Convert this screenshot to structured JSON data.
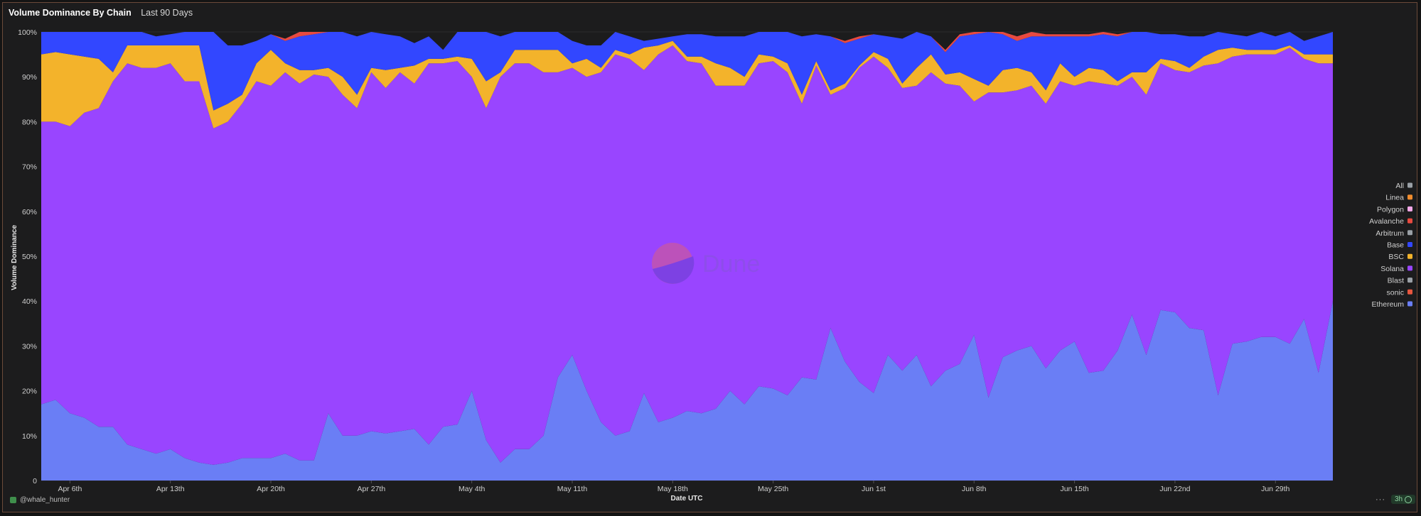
{
  "header": {
    "title": "Volume Dominance By Chain",
    "subtitle": "Last 90 Days"
  },
  "watermark": "Dune",
  "footer": {
    "author": "@whale_hunter",
    "more": "···",
    "refresh": "3h"
  },
  "chart_data": {
    "type": "area",
    "stacked": true,
    "title": "Volume Dominance By Chain",
    "xlabel": "Date UTC",
    "ylabel": "Volume Dominance",
    "ylim": [
      0,
      100
    ],
    "yticks": [
      "0",
      "10%",
      "20%",
      "30%",
      "40%",
      "50%",
      "60%",
      "70%",
      "80%",
      "90%",
      "100%"
    ],
    "xtick_labels": [
      "Apr 6th",
      "Apr 13th",
      "Apr 20th",
      "Apr 27th",
      "May 4th",
      "May 11th",
      "May 18th",
      "May 25th",
      "Jun 1st",
      "Jun 8th",
      "Jun 15th",
      "Jun 22nd",
      "Jun 29th"
    ],
    "x_start": "Apr 4th",
    "x_end": "Jul 2nd",
    "legend_position": "right",
    "legend": [
      {
        "name": "All",
        "color": "#9aa0a6"
      },
      {
        "name": "Linea",
        "color": "#f08c2e"
      },
      {
        "name": "Polygon",
        "color": "#f3a8e8"
      },
      {
        "name": "Avalanche",
        "color": "#e84a40"
      },
      {
        "name": "Arbitrum",
        "color": "#9aa0a6"
      },
      {
        "name": "Base",
        "color": "#3247ff"
      },
      {
        "name": "BSC",
        "color": "#f3b32b"
      },
      {
        "name": "Solana",
        "color": "#9945ff"
      },
      {
        "name": "Blast",
        "color": "#9aa0a6"
      },
      {
        "name": "sonic",
        "color": "#e8573f"
      },
      {
        "name": "Ethereum",
        "color": "#6a7ef5"
      }
    ],
    "series": [
      {
        "name": "Ethereum",
        "color": "#6a7ef5",
        "values": [
          17,
          18,
          15,
          14,
          12,
          12,
          8,
          7,
          6,
          7,
          5,
          4,
          3.5,
          4,
          5,
          5,
          5,
          6,
          4.5,
          4.5,
          15,
          10,
          10,
          11,
          10.5,
          11,
          11.5,
          8,
          12,
          12.5,
          20,
          9,
          4,
          7,
          7,
          10,
          23,
          28,
          20,
          13,
          10,
          11,
          19.5,
          13,
          14,
          15.5,
          15,
          16,
          20,
          17,
          21,
          20.5,
          19,
          23,
          22.5,
          34,
          26.5,
          22,
          19.5,
          28,
          24.5,
          28,
          21,
          24.5,
          26,
          32.5,
          18.5,
          27.5,
          29,
          30,
          25,
          29,
          31,
          24,
          24.5,
          29,
          37,
          28,
          38,
          37.5,
          34,
          33.5,
          19,
          30.5,
          31,
          32,
          32,
          30.5,
          36,
          24,
          40
        ]
      },
      {
        "name": "Solana",
        "color": "#9945ff",
        "values": [
          63,
          62,
          64,
          68,
          71,
          77,
          85,
          85,
          86,
          86,
          84,
          85,
          75,
          76,
          79,
          84,
          83,
          85,
          84,
          86,
          75,
          76,
          73,
          80,
          77,
          80,
          77,
          85,
          81,
          81,
          70,
          74,
          86,
          86,
          86,
          81,
          68,
          64,
          70,
          78,
          85,
          83,
          72,
          82,
          83,
          78,
          78,
          72,
          68,
          71,
          72,
          73,
          72,
          61,
          70,
          52,
          61,
          70,
          75,
          64,
          63,
          60,
          70,
          64,
          62,
          52,
          68,
          59,
          58,
          58,
          59,
          60,
          57,
          65,
          64,
          59,
          53,
          58,
          55,
          54,
          57,
          59,
          74,
          64,
          64,
          63,
          63,
          66,
          58,
          69,
          53
        ]
      },
      {
        "name": "sonic",
        "color": "#e8573f",
        "values": [
          0,
          0,
          0,
          0,
          0,
          0,
          0,
          0,
          0,
          0,
          0,
          0,
          0,
          0,
          0,
          0,
          0,
          0,
          0,
          0,
          0,
          0,
          0,
          0,
          0,
          0,
          0,
          0,
          0,
          0,
          0,
          0,
          0,
          0,
          0,
          0,
          0,
          0,
          0,
          0,
          0,
          0,
          0,
          0,
          0,
          0,
          0,
          0,
          0,
          0,
          0,
          0,
          0,
          0,
          0,
          0,
          0,
          0,
          0,
          0,
          0,
          0,
          0,
          0,
          0,
          0,
          0,
          0,
          0,
          0,
          0,
          0,
          0,
          0,
          0,
          0,
          0,
          0,
          0,
          0,
          0,
          0,
          0,
          0,
          0,
          0,
          0,
          0,
          0,
          0,
          0
        ]
      },
      {
        "name": "BSC",
        "color": "#f3b32b",
        "values": [
          15,
          15.5,
          16,
          12.5,
          11,
          2,
          4,
          5,
          5,
          4,
          8,
          8,
          4,
          4,
          2,
          4,
          8,
          2,
          3,
          1,
          2,
          4,
          3,
          1,
          4,
          1,
          4,
          1,
          1,
          1,
          4,
          6,
          1,
          3,
          3,
          5,
          5,
          1,
          4,
          1,
          1,
          1,
          5,
          2,
          1,
          1,
          1.5,
          5,
          4,
          2,
          2,
          1,
          2,
          2,
          1,
          1,
          1,
          0.5,
          1,
          2,
          1,
          4,
          4,
          2,
          3,
          5,
          1.5,
          5,
          5,
          3,
          3,
          4,
          2,
          3,
          3,
          1,
          1,
          5,
          1,
          2,
          1,
          2,
          3,
          2,
          1,
          1,
          1,
          0.5,
          1,
          2,
          2
        ]
      },
      {
        "name": "Base",
        "color": "#3247ff",
        "values": [
          5,
          4.5,
          5,
          5.5,
          6,
          9,
          3,
          3,
          2,
          2.5,
          3,
          3,
          17.5,
          13,
          11,
          5,
          3.5,
          5,
          7.5,
          8,
          8,
          10,
          13,
          8,
          8,
          7,
          5,
          5,
          2,
          6,
          6,
          11,
          8,
          4,
          4,
          4,
          4,
          5,
          3,
          5,
          4,
          4,
          1.5,
          1.5,
          1,
          5,
          5,
          6,
          7,
          9,
          5,
          6,
          7,
          13,
          6,
          12,
          9,
          6,
          4,
          5,
          10,
          8,
          4,
          5,
          8,
          10,
          12,
          8,
          6,
          8,
          12,
          6,
          9,
          7,
          8,
          10,
          9,
          9,
          5.5,
          6,
          7,
          4.5,
          4,
          3,
          3,
          4,
          3,
          3,
          3,
          4,
          5
        ]
      },
      {
        "name": "Avalanche",
        "color": "#e84a40",
        "values": [
          0,
          0,
          0,
          0,
          0,
          0,
          0,
          0,
          0,
          0,
          0,
          0,
          0,
          0,
          0,
          0,
          0,
          0.5,
          1,
          1,
          0,
          0,
          0,
          0,
          0,
          0,
          0,
          0,
          0,
          0,
          0,
          0,
          0,
          0,
          0,
          0,
          0,
          0,
          0,
          0,
          0,
          0,
          0,
          0,
          0,
          0,
          0,
          0,
          0,
          0,
          0,
          0,
          0,
          0,
          0,
          0,
          0.5,
          0.5,
          0,
          0,
          0,
          0,
          0,
          0.5,
          0.5,
          0.5,
          0.5,
          0.5,
          1,
          1,
          0.5,
          0.5,
          0.5,
          0.5,
          0.5,
          0.5,
          0.5,
          0.5,
          0,
          0,
          0,
          0,
          0,
          0,
          0,
          0,
          0,
          0,
          0,
          0,
          0
        ]
      }
    ]
  }
}
